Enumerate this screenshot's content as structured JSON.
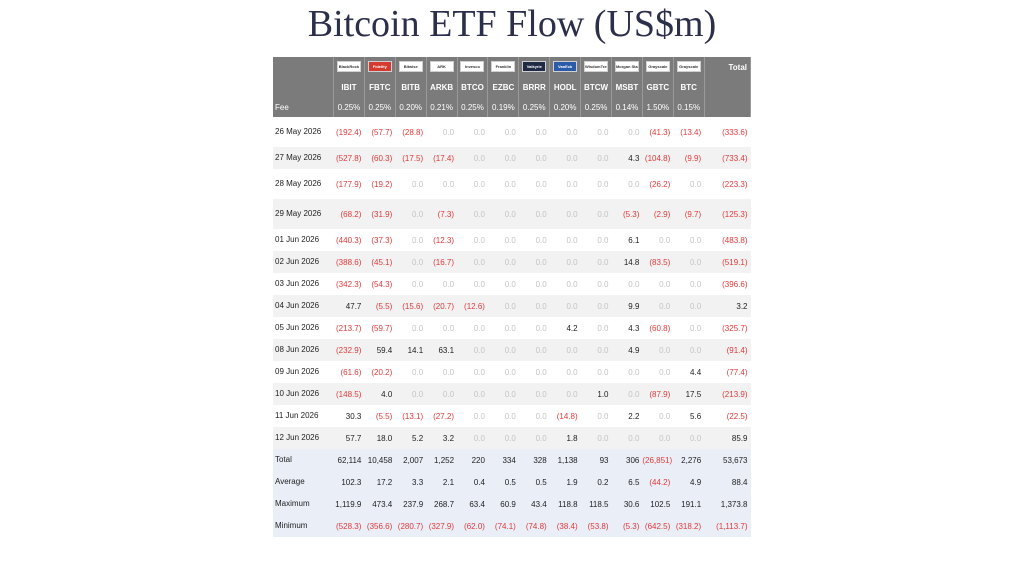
{
  "title": "Bitcoin ETF Flow (US$m)",
  "chart_data": {
    "type": "table",
    "title": "Bitcoin ETF Flow (US$m)",
    "fee_label": "Fee",
    "total_header": "Total",
    "columns": [
      "IBIT",
      "FBTC",
      "BITB",
      "ARKB",
      "BTCO",
      "EZBC",
      "BRRR",
      "HODL",
      "BTCW",
      "MSBT",
      "GBTC",
      "BTC"
    ],
    "issuers": [
      "BlackRock",
      "Fidelity",
      "Bitwise",
      "ARK",
      "Invesco",
      "Franklin",
      "Valkyrie",
      "VanEck",
      "WisdomTree",
      "Morgan Stanley",
      "Grayscale",
      "Grayscale"
    ],
    "fees": [
      "0.25%",
      "0.25%",
      "0.20%",
      "0.21%",
      "0.25%",
      "0.19%",
      "0.25%",
      "0.20%",
      "0.25%",
      "0.14%",
      "1.50%",
      "0.15%"
    ],
    "rows": [
      {
        "date": "26 May 2026",
        "tall": true,
        "values": [
          "(192.4)",
          "(57.7)",
          "(28.8)",
          "0.0",
          "0.0",
          "0.0",
          "0.0",
          "0.0",
          "0.0",
          "0.0",
          "(41.3)",
          "(13.4)"
        ],
        "total": "(333.6)"
      },
      {
        "date": "27 May 2026",
        "tall": false,
        "values": [
          "(527.8)",
          "(60.3)",
          "(17.5)",
          "(17.4)",
          "0.0",
          "0.0",
          "0.0",
          "0.0",
          "0.0",
          "4.3",
          "(104.8)",
          "(9.9)"
        ],
        "total": "(733.4)"
      },
      {
        "date": "28 May 2026",
        "tall": true,
        "values": [
          "(177.9)",
          "(19.2)",
          "0.0",
          "0.0",
          "0.0",
          "0.0",
          "0.0",
          "0.0",
          "0.0",
          "0.0",
          "(26.2)",
          "0.0"
        ],
        "total": "(223.3)"
      },
      {
        "date": "29 May 2026",
        "tall": true,
        "values": [
          "(68.2)",
          "(31.9)",
          "0.0",
          "(7.3)",
          "0.0",
          "0.0",
          "0.0",
          "0.0",
          "0.0",
          "(5.3)",
          "(2.9)",
          "(9.7)"
        ],
        "total": "(125.3)"
      },
      {
        "date": "01 Jun 2026",
        "tall": false,
        "values": [
          "(440.3)",
          "(37.3)",
          "0.0",
          "(12.3)",
          "0.0",
          "0.0",
          "0.0",
          "0.0",
          "0.0",
          "6.1",
          "0.0",
          "0.0"
        ],
        "total": "(483.8)"
      },
      {
        "date": "02 Jun 2026",
        "tall": false,
        "values": [
          "(388.6)",
          "(45.1)",
          "0.0",
          "(16.7)",
          "0.0",
          "0.0",
          "0.0",
          "0.0",
          "0.0",
          "14.8",
          "(83.5)",
          "0.0"
        ],
        "total": "(519.1)"
      },
      {
        "date": "03 Jun 2026",
        "tall": false,
        "values": [
          "(342.3)",
          "(54.3)",
          "0.0",
          "0.0",
          "0.0",
          "0.0",
          "0.0",
          "0.0",
          "0.0",
          "0.0",
          "0.0",
          "0.0"
        ],
        "total": "(396.6)"
      },
      {
        "date": "04 Jun 2026",
        "tall": false,
        "values": [
          "47.7",
          "(5.5)",
          "(15.6)",
          "(20.7)",
          "(12.6)",
          "0.0",
          "0.0",
          "0.0",
          "0.0",
          "9.9",
          "0.0",
          "0.0"
        ],
        "total": "3.2"
      },
      {
        "date": "05 Jun 2026",
        "tall": false,
        "values": [
          "(213.7)",
          "(59.7)",
          "0.0",
          "0.0",
          "0.0",
          "0.0",
          "0.0",
          "4.2",
          "0.0",
          "4.3",
          "(60.8)",
          "0.0"
        ],
        "total": "(325.7)"
      },
      {
        "date": "08 Jun 2026",
        "tall": false,
        "values": [
          "(232.9)",
          "59.4",
          "14.1",
          "63.1",
          "0.0",
          "0.0",
          "0.0",
          "0.0",
          "0.0",
          "4.9",
          "0.0",
          "0.0"
        ],
        "total": "(91.4)"
      },
      {
        "date": "09 Jun 2026",
        "tall": false,
        "values": [
          "(61.6)",
          "(20.2)",
          "0.0",
          "0.0",
          "0.0",
          "0.0",
          "0.0",
          "0.0",
          "0.0",
          "0.0",
          "0.0",
          "4.4"
        ],
        "total": "(77.4)"
      },
      {
        "date": "10 Jun 2026",
        "tall": false,
        "values": [
          "(148.5)",
          "4.0",
          "0.0",
          "0.0",
          "0.0",
          "0.0",
          "0.0",
          "0.0",
          "1.0",
          "0.0",
          "(87.9)",
          "17.5"
        ],
        "total": "(213.9)"
      },
      {
        "date": "11 Jun 2026",
        "tall": false,
        "values": [
          "30.3",
          "(5.5)",
          "(13.1)",
          "(27.2)",
          "0.0",
          "0.0",
          "0.0",
          "(14.8)",
          "0.0",
          "2.2",
          "0.0",
          "5.6"
        ],
        "total": "(22.5)"
      },
      {
        "date": "12 Jun 2026",
        "tall": false,
        "values": [
          "57.7",
          "18.0",
          "5.2",
          "3.2",
          "0.0",
          "0.0",
          "0.0",
          "1.8",
          "0.0",
          "0.0",
          "0.0",
          "0.0"
        ],
        "total": "85.9"
      }
    ],
    "stats": [
      {
        "label": "Total",
        "values": [
          "62,114",
          "10,458",
          "2,007",
          "1,252",
          "220",
          "334",
          "328",
          "1,138",
          "93",
          "306",
          "(26,851)",
          "2,276"
        ],
        "total": "53,673"
      },
      {
        "label": "Average",
        "values": [
          "102.3",
          "17.2",
          "3.3",
          "2.1",
          "0.4",
          "0.5",
          "0.5",
          "1.9",
          "0.2",
          "6.5",
          "(44.2)",
          "4.9"
        ],
        "total": "88.4"
      },
      {
        "label": "Maximum",
        "values": [
          "1,119.9",
          "473.4",
          "237.9",
          "268.7",
          "63.4",
          "60.9",
          "43.4",
          "118.8",
          "118.5",
          "30.6",
          "102.5",
          "191.1"
        ],
        "total": "1,373.8"
      },
      {
        "label": "Minimum",
        "values": [
          "(528.3)",
          "(356.6)",
          "(280.7)",
          "(327.9)",
          "(62.0)",
          "(74.1)",
          "(74.8)",
          "(38.4)",
          "(53.8)",
          "(5.3)",
          "(642.5)",
          "(318.2)"
        ],
        "total": "(1,113.7)"
      }
    ]
  }
}
